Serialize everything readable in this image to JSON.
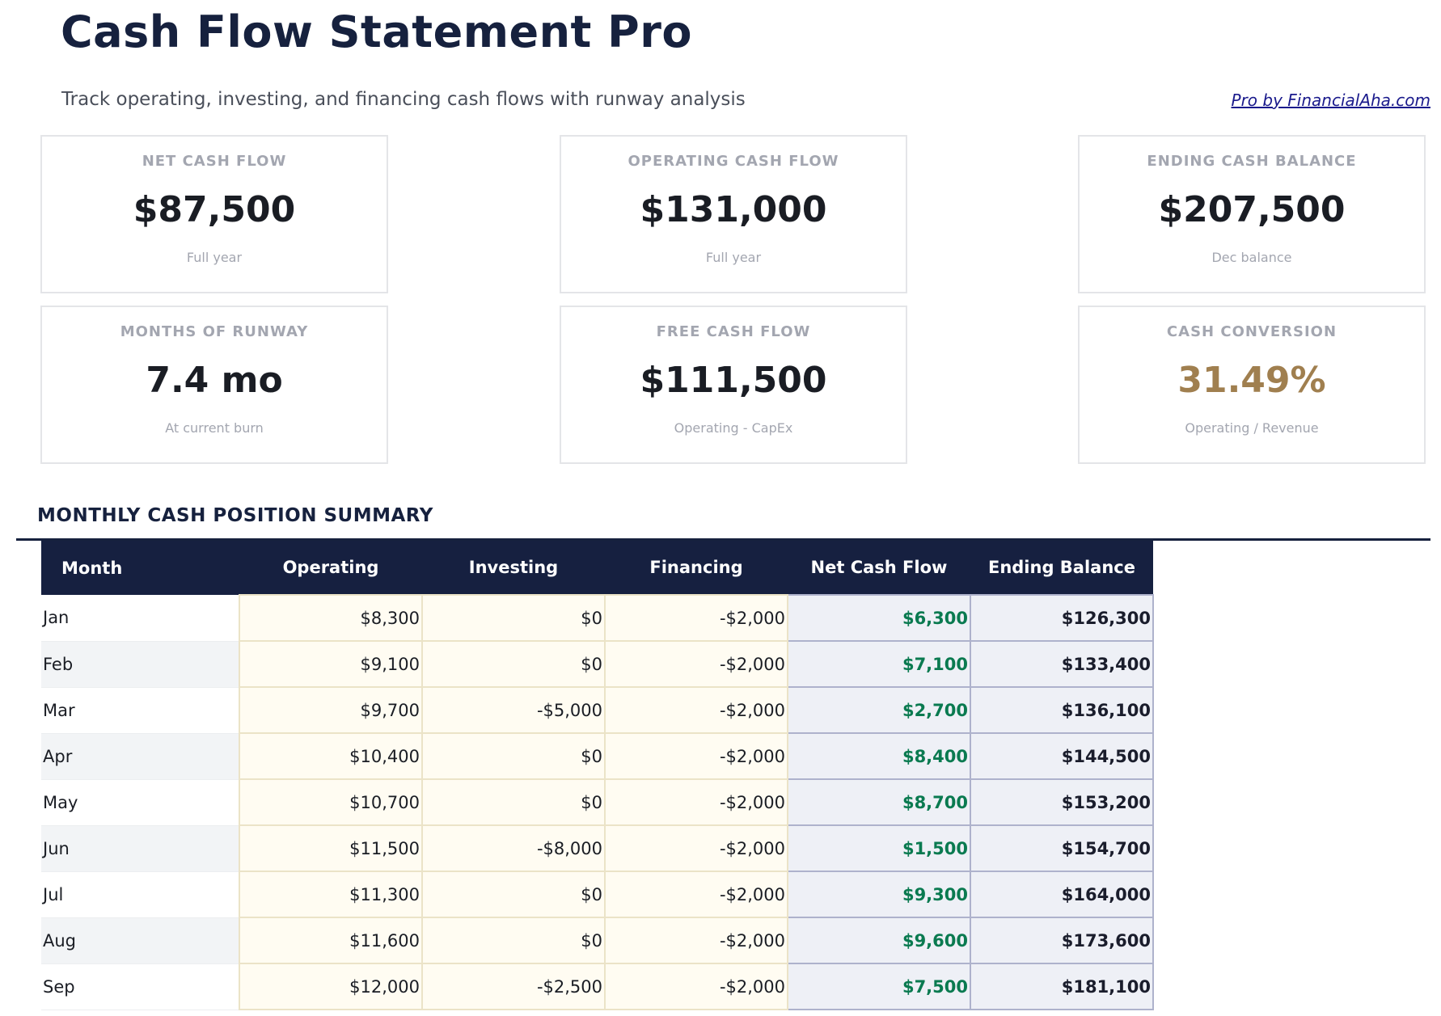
{
  "header": {
    "title": "Cash Flow Statement Pro",
    "subtitle": "Track operating, investing, and financing cash flows with runway analysis",
    "brand_link": "Pro by FinancialAha.com"
  },
  "metrics": [
    {
      "label": "NET CASH FLOW",
      "value": "$87,500",
      "sub": "Full year"
    },
    {
      "label": "OPERATING CASH FLOW",
      "value": "$131,000",
      "sub": "Full year"
    },
    {
      "label": "ENDING CASH BALANCE",
      "value": "$207,500",
      "sub": "Dec balance"
    },
    {
      "label": "MONTHS OF RUNWAY",
      "value": "7.4 mo",
      "sub": "At current burn"
    },
    {
      "label": "FREE CASH FLOW",
      "value": "$111,500",
      "sub": "Operating - CapEx"
    },
    {
      "label": "CASH CONVERSION",
      "value": "31.49%",
      "sub": "Operating / Revenue",
      "color": "#a07f4f"
    }
  ],
  "summary": {
    "title": "MONTHLY CASH POSITION SUMMARY",
    "columns": [
      "Month",
      "Operating",
      "Investing",
      "Financing",
      "Net Cash Flow",
      "Ending Balance"
    ],
    "rows": [
      [
        "Jan",
        "$8,300",
        "$0",
        "-$2,000",
        "$6,300",
        "$126,300"
      ],
      [
        "Feb",
        "$9,100",
        "$0",
        "-$2,000",
        "$7,100",
        "$133,400"
      ],
      [
        "Mar",
        "$9,700",
        "-$5,000",
        "-$2,000",
        "$2,700",
        "$136,100"
      ],
      [
        "Apr",
        "$10,400",
        "$0",
        "-$2,000",
        "$8,400",
        "$144,500"
      ],
      [
        "May",
        "$10,700",
        "$0",
        "-$2,000",
        "$8,700",
        "$153,200"
      ],
      [
        "Jun",
        "$11,500",
        "-$8,000",
        "-$2,000",
        "$1,500",
        "$154,700"
      ],
      [
        "Jul",
        "$11,300",
        "$0",
        "-$2,000",
        "$9,300",
        "$164,000"
      ],
      [
        "Aug",
        "$11,600",
        "$0",
        "-$2,000",
        "$9,600",
        "$173,600"
      ],
      [
        "Sep",
        "$12,000",
        "-$2,500",
        "-$2,000",
        "$7,500",
        "$181,100"
      ]
    ]
  },
  "colors": {
    "navy": "#16213e",
    "positive": "#0a7a50",
    "accent_gold": "#a07f4f"
  }
}
